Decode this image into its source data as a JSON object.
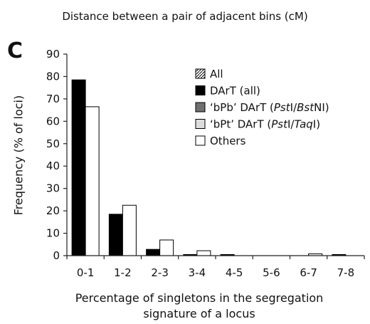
{
  "top_title": "Distance between a pair of adjacent bins (cM)",
  "panel_letter": "C",
  "chart_data": {
    "type": "bar",
    "ylabel": "Frequency (% of loci)",
    "xlabel_line1": "Percentage of singletons in the segregation",
    "xlabel_line2": "signature of a locus",
    "categories": [
      "0-1",
      "1-2",
      "2-3",
      "3-4",
      "4-5",
      "5-6",
      "6-7",
      "7-8"
    ],
    "ylim": [
      0,
      90
    ],
    "yticks": [
      0,
      10,
      20,
      30,
      40,
      50,
      60,
      70,
      80,
      90
    ],
    "legend": [
      {
        "label": "All",
        "fill": "hatch"
      },
      {
        "label": "DArT (all)",
        "fill": "#000000"
      },
      {
        "label_parts": [
          "‘bPb’ DArT (",
          "Pst",
          "I/",
          "Bst",
          "NI)"
        ],
        "fill": "#707070"
      },
      {
        "label_parts": [
          "‘bPt’ DArT (",
          "Pst",
          "I/",
          "Taq",
          "I)"
        ],
        "fill": "#dcdcdc"
      },
      {
        "label": "Others",
        "fill": "#ffffff"
      }
    ],
    "legend_position": "top-right",
    "series": [
      {
        "name": "DArT (all)",
        "color": "#000000",
        "values": [
          78.5,
          18.5,
          2.8,
          0.5,
          0.5,
          0,
          0,
          0.5
        ]
      },
      {
        "name": "Others",
        "color": "#ffffff",
        "values": [
          66.5,
          22.5,
          7,
          2.2,
          0,
          0,
          0.8,
          0
        ]
      }
    ]
  }
}
